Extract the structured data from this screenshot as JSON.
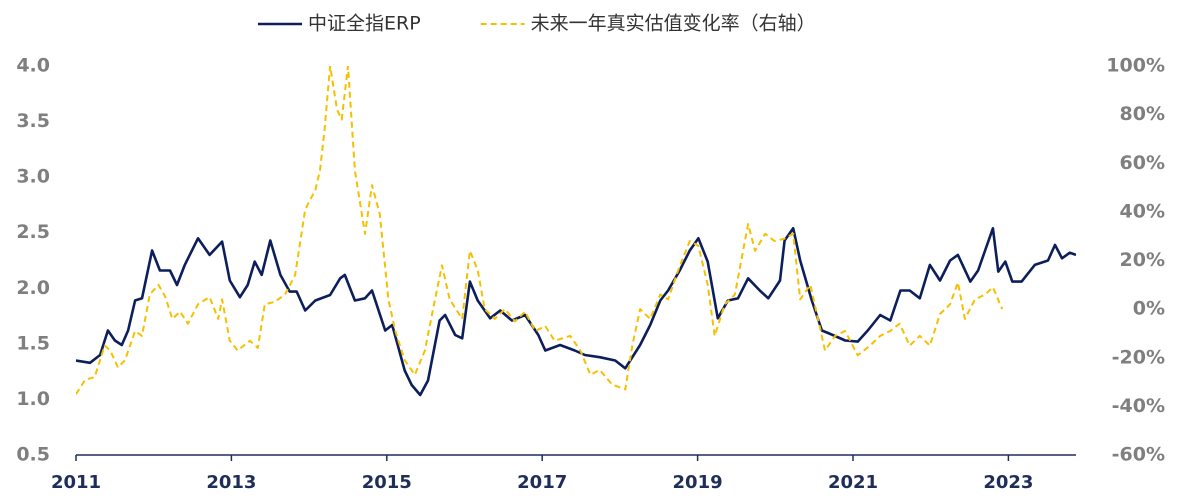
{
  "chart_data": {
    "type": "line",
    "series": [
      {
        "name": "中证全指ERP",
        "color": "#0c1f5c",
        "axis": "y",
        "x": [
          2011.0,
          2011.18,
          2011.31,
          2011.41,
          2011.5,
          2011.59,
          2011.67,
          2011.76,
          2011.85,
          2011.98,
          2012.08,
          2012.21,
          2012.3,
          2012.4,
          2012.57,
          2012.72,
          2012.88,
          2012.98,
          2013.11,
          2013.21,
          2013.3,
          2013.39,
          2013.5,
          2013.63,
          2013.75,
          2013.84,
          2013.95,
          2014.08,
          2014.27,
          2014.4,
          2014.46,
          2014.59,
          2014.72,
          2014.81,
          2014.98,
          2015.07,
          2015.23,
          2015.32,
          2015.43,
          2015.53,
          2015.68,
          2015.75,
          2015.88,
          2015.97,
          2016.07,
          2016.17,
          2016.33,
          2016.46,
          2016.61,
          2016.78,
          2016.95,
          2017.04,
          2017.23,
          2017.42,
          2017.55,
          2017.74,
          2017.94,
          2018.07,
          2018.26,
          2018.39,
          2018.52,
          2018.62,
          2018.77,
          2018.9,
          2019.01,
          2019.13,
          2019.26,
          2019.39,
          2019.52,
          2019.65,
          2019.8,
          2019.91,
          2020.06,
          2020.12,
          2020.23,
          2020.32,
          2020.47,
          2020.6,
          2020.74,
          2020.9,
          2021.06,
          2021.19,
          2021.35,
          2021.48,
          2021.61,
          2021.73,
          2021.86,
          2021.99,
          2022.12,
          2022.25,
          2022.35,
          2022.51,
          2022.61,
          2022.7,
          2022.8,
          2022.87,
          2022.96,
          2023.05,
          2023.17,
          2023.34,
          2023.51,
          2023.6,
          2023.69,
          2023.79,
          2023.87
        ],
        "values": [
          1.35,
          1.33,
          1.4,
          1.62,
          1.53,
          1.49,
          1.62,
          1.89,
          1.91,
          2.34,
          2.16,
          2.16,
          2.03,
          2.21,
          2.45,
          2.3,
          2.42,
          2.07,
          1.92,
          2.03,
          2.24,
          2.12,
          2.43,
          2.12,
          1.97,
          1.97,
          1.8,
          1.89,
          1.94,
          2.09,
          2.12,
          1.89,
          1.91,
          1.98,
          1.62,
          1.67,
          1.26,
          1.13,
          1.04,
          1.17,
          1.71,
          1.76,
          1.58,
          1.55,
          2.06,
          1.89,
          1.73,
          1.8,
          1.71,
          1.76,
          1.58,
          1.44,
          1.49,
          1.44,
          1.4,
          1.38,
          1.35,
          1.28,
          1.49,
          1.67,
          1.89,
          1.98,
          2.16,
          2.34,
          2.45,
          2.24,
          1.73,
          1.89,
          1.91,
          2.09,
          1.98,
          1.91,
          2.07,
          2.43,
          2.54,
          2.25,
          1.89,
          1.62,
          1.58,
          1.53,
          1.52,
          1.62,
          1.76,
          1.71,
          1.98,
          1.98,
          1.91,
          2.21,
          2.07,
          2.25,
          2.3,
          2.06,
          2.16,
          2.34,
          2.54,
          2.15,
          2.24,
          2.06,
          2.06,
          2.21,
          2.25,
          2.39,
          2.27,
          2.32,
          2.3
        ]
      },
      {
        "name": "未来一年真实估值变化率（右轴）",
        "color": "#f5c000",
        "axis": "y2",
        "dashed": true,
        "x": [
          2011.0,
          2011.12,
          2011.24,
          2011.37,
          2011.44,
          2011.54,
          2011.63,
          2011.76,
          2011.85,
          2011.95,
          2012.06,
          2012.15,
          2012.24,
          2012.34,
          2012.44,
          2012.57,
          2012.72,
          2012.83,
          2012.88,
          2012.98,
          2013.08,
          2013.24,
          2013.34,
          2013.43,
          2013.56,
          2013.69,
          2013.82,
          2013.95,
          2014.08,
          2014.14,
          2014.2,
          2014.27,
          2014.36,
          2014.42,
          2014.5,
          2014.59,
          2014.72,
          2014.81,
          2014.91,
          2015.02,
          2015.11,
          2015.23,
          2015.36,
          2015.49,
          2015.62,
          2015.71,
          2015.81,
          2015.97,
          2016.07,
          2016.17,
          2016.26,
          2016.39,
          2016.52,
          2016.65,
          2016.78,
          2016.91,
          2017.04,
          2017.16,
          2017.36,
          2017.49,
          2017.62,
          2017.74,
          2017.9,
          2018.07,
          2018.16,
          2018.26,
          2018.39,
          2018.52,
          2018.62,
          2018.75,
          2018.9,
          2019.01,
          2019.13,
          2019.22,
          2019.35,
          2019.48,
          2019.65,
          2019.74,
          2019.87,
          2019.99,
          2020.12,
          2020.23,
          2020.32,
          2020.45,
          2020.55,
          2020.64,
          2020.77,
          2020.9,
          2021.06,
          2021.22,
          2021.35,
          2021.48,
          2021.6,
          2021.73,
          2021.86,
          2021.99,
          2022.12,
          2022.25,
          2022.35,
          2022.44,
          2022.57,
          2022.7,
          2022.8,
          2022.92
        ],
        "values": [
          -35,
          -29,
          -28,
          -15,
          -17,
          -24,
          -21,
          -9,
          -11,
          6,
          10,
          5,
          -4,
          -1,
          -6,
          2,
          5,
          -4,
          4,
          -13,
          -17,
          -13,
          -16,
          2,
          3,
          6,
          14,
          41,
          49,
          57,
          74,
          100,
          82,
          78,
          100,
          57,
          31,
          51,
          39,
          4,
          -9,
          -21,
          -27,
          -17,
          4,
          18,
          4,
          -4,
          24,
          16,
          0,
          -4,
          0,
          -5,
          -1,
          -9,
          -7,
          -13,
          -11,
          -17,
          -27,
          -25,
          -31,
          -33,
          -15,
          0,
          -4,
          6,
          4,
          16,
          28,
          26,
          10,
          -11,
          2,
          6,
          35,
          24,
          31,
          28,
          29,
          31,
          4,
          10,
          -4,
          -17,
          -11,
          -9,
          -19,
          -15,
          -11,
          -9,
          -6,
          -15,
          -11,
          -15,
          -2,
          2,
          11,
          -4,
          4,
          6,
          9,
          0
        ]
      }
    ],
    "xlim": [
      2011,
      2023.87
    ],
    "xticks": [
      2011,
      2013,
      2015,
      2017,
      2019,
      2021,
      2023
    ],
    "ylim": [
      0.5,
      4
    ],
    "yticks": [
      {
        "value": 0.5,
        "label": "0.5"
      },
      {
        "value": 1,
        "label": "1.0"
      },
      1.5,
      {
        "value": 2,
        "label": "2.0"
      },
      2.5,
      {
        "value": 3,
        "label": "3.0"
      },
      3.5,
      {
        "value": 4,
        "label": "4.0"
      }
    ],
    "y2lim": [
      -60,
      100
    ],
    "y2ticks": [
      {
        "value": -60,
        "label": "-60%"
      },
      {
        "value": -40,
        "label": "-40%"
      },
      {
        "value": -20,
        "label": "-20%"
      },
      {
        "value": 0,
        "label": "0%"
      },
      {
        "value": 20,
        "label": "20%"
      },
      {
        "value": 40,
        "label": "40%"
      },
      {
        "value": 60,
        "label": "60%"
      },
      {
        "value": 80,
        "label": "80%"
      },
      {
        "value": 100,
        "label": "100%"
      }
    ],
    "legend": "top",
    "grid": false
  }
}
